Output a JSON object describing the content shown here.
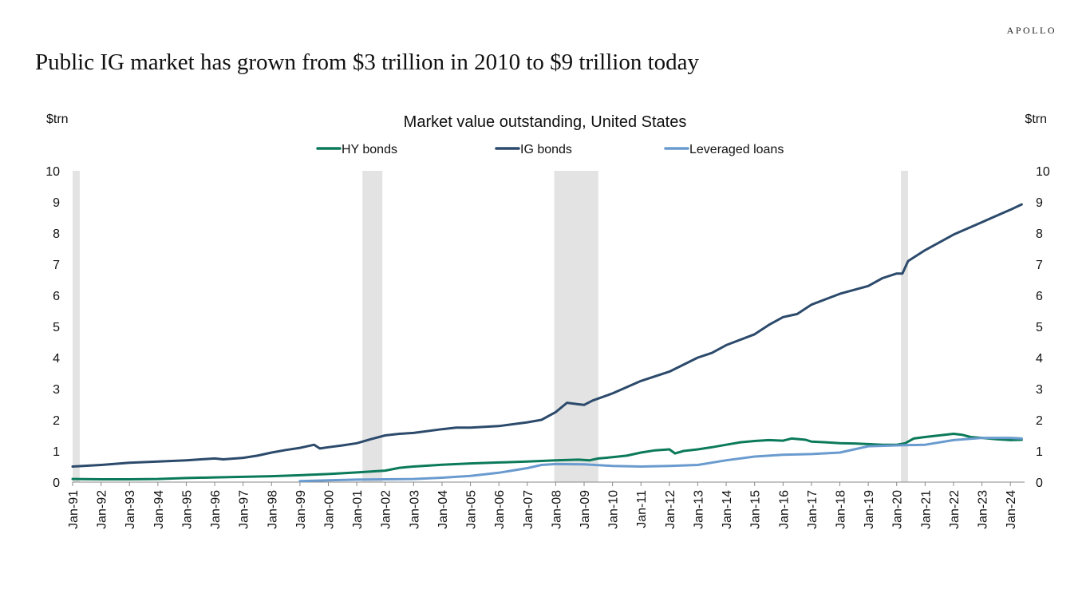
{
  "brand": "APOLLO",
  "headline": "Public IG market has grown from $3 trillion in 2010 to $9 trillion today",
  "chart_data": {
    "type": "line",
    "title": "Market value outstanding, United States",
    "ylabel_left": "$trn",
    "ylabel_right": "$trn",
    "ylim": [
      0,
      10
    ],
    "yticks": [
      0,
      1,
      2,
      3,
      4,
      5,
      6,
      7,
      8,
      9,
      10
    ],
    "xlim": [
      1991.0,
      2024.5
    ],
    "xtick_labels": [
      "Jan-91",
      "Jan-92",
      "Jan-93",
      "Jan-94",
      "Jan-95",
      "Jan-96",
      "Jan-97",
      "Jan-98",
      "Jan-99",
      "Jan-00",
      "Jan-01",
      "Jan-02",
      "Jan-03",
      "Jan-04",
      "Jan-05",
      "Jan-06",
      "Jan-07",
      "Jan-08",
      "Jan-09",
      "Jan-10",
      "Jan-11",
      "Jan-12",
      "Jan-13",
      "Jan-14",
      "Jan-15",
      "Jan-16",
      "Jan-17",
      "Jan-18",
      "Jan-19",
      "Jan-20",
      "Jan-21",
      "Jan-22",
      "Jan-23",
      "Jan-24"
    ],
    "xtick_years": [
      1991,
      1992,
      1993,
      1994,
      1995,
      1996,
      1997,
      1998,
      1999,
      2000,
      2001,
      2002,
      2003,
      2004,
      2005,
      2006,
      2007,
      2008,
      2009,
      2010,
      2011,
      2012,
      2013,
      2014,
      2015,
      2016,
      2017,
      2018,
      2019,
      2020,
      2021,
      2022,
      2023,
      2024
    ],
    "recessions": [
      [
        1991.0,
        1991.25
      ],
      [
        2001.2,
        2001.9
      ],
      [
        2007.95,
        2009.5
      ],
      [
        2020.15,
        2020.4
      ]
    ],
    "recession_color": "#e3e3e3",
    "legend_position": "top-center",
    "grid": false,
    "series": [
      {
        "name": "HY bonds",
        "color": "#0b7a5a",
        "points": [
          [
            1991.0,
            0.1
          ],
          [
            1992.0,
            0.09
          ],
          [
            1993.0,
            0.09
          ],
          [
            1994.0,
            0.1
          ],
          [
            1995.0,
            0.13
          ],
          [
            1996.0,
            0.15
          ],
          [
            1997.0,
            0.17
          ],
          [
            1998.0,
            0.19
          ],
          [
            1999.0,
            0.22
          ],
          [
            2000.0,
            0.26
          ],
          [
            2001.0,
            0.31
          ],
          [
            2002.0,
            0.37
          ],
          [
            2002.5,
            0.46
          ],
          [
            2003.0,
            0.5
          ],
          [
            2004.0,
            0.56
          ],
          [
            2005.0,
            0.6
          ],
          [
            2006.0,
            0.63
          ],
          [
            2007.0,
            0.66
          ],
          [
            2008.0,
            0.7
          ],
          [
            2008.8,
            0.72
          ],
          [
            2009.2,
            0.7
          ],
          [
            2009.5,
            0.76
          ],
          [
            2010.0,
            0.8
          ],
          [
            2010.5,
            0.85
          ],
          [
            2011.0,
            0.95
          ],
          [
            2011.5,
            1.02
          ],
          [
            2012.0,
            1.05
          ],
          [
            2012.2,
            0.92
          ],
          [
            2012.5,
            1.0
          ],
          [
            2013.0,
            1.05
          ],
          [
            2013.5,
            1.12
          ],
          [
            2014.0,
            1.2
          ],
          [
            2014.5,
            1.28
          ],
          [
            2015.0,
            1.32
          ],
          [
            2015.5,
            1.35
          ],
          [
            2016.0,
            1.33
          ],
          [
            2016.3,
            1.4
          ],
          [
            2016.8,
            1.36
          ],
          [
            2017.0,
            1.3
          ],
          [
            2017.5,
            1.28
          ],
          [
            2018.0,
            1.25
          ],
          [
            2018.5,
            1.24
          ],
          [
            2019.0,
            1.22
          ],
          [
            2019.5,
            1.2
          ],
          [
            2020.0,
            1.2
          ],
          [
            2020.3,
            1.25
          ],
          [
            2020.6,
            1.4
          ],
          [
            2021.0,
            1.45
          ],
          [
            2021.5,
            1.5
          ],
          [
            2022.0,
            1.55
          ],
          [
            2022.3,
            1.52
          ],
          [
            2022.6,
            1.45
          ],
          [
            2023.0,
            1.42
          ],
          [
            2023.5,
            1.38
          ],
          [
            2024.0,
            1.35
          ],
          [
            2024.4,
            1.36
          ]
        ]
      },
      {
        "name": "IG bonds",
        "color": "#2c4a6b",
        "points": [
          [
            1991.0,
            0.5
          ],
          [
            1992.0,
            0.55
          ],
          [
            1993.0,
            0.62
          ],
          [
            1994.0,
            0.66
          ],
          [
            1995.0,
            0.7
          ],
          [
            1996.0,
            0.76
          ],
          [
            1996.3,
            0.73
          ],
          [
            1997.0,
            0.78
          ],
          [
            1997.5,
            0.85
          ],
          [
            1998.0,
            0.95
          ],
          [
            1998.5,
            1.03
          ],
          [
            1999.0,
            1.1
          ],
          [
            1999.5,
            1.2
          ],
          [
            1999.7,
            1.08
          ],
          [
            2000.0,
            1.12
          ],
          [
            2000.5,
            1.18
          ],
          [
            2001.0,
            1.25
          ],
          [
            2001.5,
            1.38
          ],
          [
            2002.0,
            1.5
          ],
          [
            2002.5,
            1.55
          ],
          [
            2003.0,
            1.58
          ],
          [
            2004.0,
            1.7
          ],
          [
            2004.5,
            1.75
          ],
          [
            2005.0,
            1.75
          ],
          [
            2006.0,
            1.8
          ],
          [
            2007.0,
            1.92
          ],
          [
            2007.5,
            2.0
          ],
          [
            2008.0,
            2.25
          ],
          [
            2008.4,
            2.55
          ],
          [
            2008.8,
            2.5
          ],
          [
            2009.0,
            2.48
          ],
          [
            2009.3,
            2.62
          ],
          [
            2010.0,
            2.85
          ],
          [
            2011.0,
            3.25
          ],
          [
            2012.0,
            3.55
          ],
          [
            2013.0,
            4.0
          ],
          [
            2013.5,
            4.15
          ],
          [
            2014.0,
            4.4
          ],
          [
            2015.0,
            4.75
          ],
          [
            2015.5,
            5.05
          ],
          [
            2016.0,
            5.3
          ],
          [
            2016.5,
            5.4
          ],
          [
            2017.0,
            5.7
          ],
          [
            2018.0,
            6.05
          ],
          [
            2019.0,
            6.3
          ],
          [
            2019.5,
            6.55
          ],
          [
            2020.0,
            6.7
          ],
          [
            2020.2,
            6.7
          ],
          [
            2020.4,
            7.1
          ],
          [
            2021.0,
            7.45
          ],
          [
            2021.5,
            7.7
          ],
          [
            2022.0,
            7.95
          ],
          [
            2022.5,
            8.15
          ],
          [
            2023.0,
            8.35
          ],
          [
            2023.5,
            8.55
          ],
          [
            2024.0,
            8.75
          ],
          [
            2024.4,
            8.92
          ]
        ]
      },
      {
        "name": "Leveraged loans",
        "color": "#6a9bcf",
        "points": [
          [
            1999.0,
            0.03
          ],
          [
            2000.0,
            0.06
          ],
          [
            2001.0,
            0.08
          ],
          [
            2002.0,
            0.09
          ],
          [
            2003.0,
            0.1
          ],
          [
            2004.0,
            0.14
          ],
          [
            2005.0,
            0.2
          ],
          [
            2006.0,
            0.3
          ],
          [
            2007.0,
            0.45
          ],
          [
            2007.5,
            0.55
          ],
          [
            2008.0,
            0.58
          ],
          [
            2009.0,
            0.57
          ],
          [
            2010.0,
            0.52
          ],
          [
            2011.0,
            0.5
          ],
          [
            2012.0,
            0.52
          ],
          [
            2013.0,
            0.55
          ],
          [
            2014.0,
            0.7
          ],
          [
            2015.0,
            0.82
          ],
          [
            2015.5,
            0.85
          ],
          [
            2016.0,
            0.88
          ],
          [
            2017.0,
            0.9
          ],
          [
            2018.0,
            0.95
          ],
          [
            2019.0,
            1.15
          ],
          [
            2020.0,
            1.18
          ],
          [
            2021.0,
            1.2
          ],
          [
            2022.0,
            1.35
          ],
          [
            2023.0,
            1.42
          ],
          [
            2024.0,
            1.42
          ],
          [
            2024.4,
            1.4
          ]
        ]
      }
    ]
  }
}
